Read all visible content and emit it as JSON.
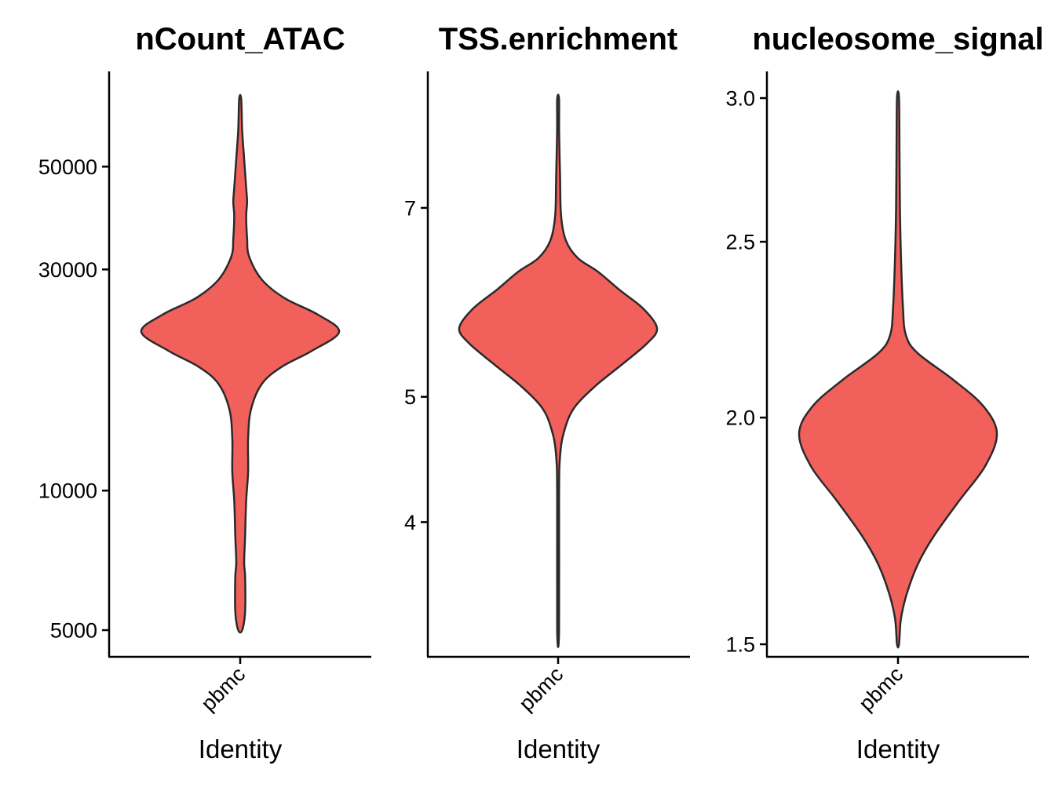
{
  "chart_data": [
    {
      "type": "violin",
      "title": "nCount_ATAC",
      "xlabel": "Identity",
      "ylabel": "",
      "categories": [
        "pbmc"
      ],
      "fill_color": "#F2605B",
      "y_scale": "log",
      "yticks": [
        5000,
        10000,
        30000,
        50000
      ],
      "ytick_labels": [
        "5000",
        "10000",
        "30000",
        "50000"
      ],
      "ylim": [
        5000,
        70000
      ],
      "density_profile": [
        [
          5000,
          0.02
        ],
        [
          5500,
          0.05
        ],
        [
          6500,
          0.05
        ],
        [
          7000,
          0.04
        ],
        [
          8000,
          0.05
        ],
        [
          9500,
          0.06
        ],
        [
          11000,
          0.08
        ],
        [
          13000,
          0.08
        ],
        [
          15000,
          0.11
        ],
        [
          17000,
          0.22
        ],
        [
          18500,
          0.42
        ],
        [
          20000,
          0.72
        ],
        [
          22000,
          1.0
        ],
        [
          24000,
          0.78
        ],
        [
          26000,
          0.45
        ],
        [
          28500,
          0.22
        ],
        [
          32000,
          0.09
        ],
        [
          35000,
          0.07
        ],
        [
          39000,
          0.06
        ],
        [
          42000,
          0.07
        ],
        [
          45000,
          0.06
        ],
        [
          52000,
          0.04
        ],
        [
          60000,
          0.02
        ],
        [
          70000,
          0.01
        ]
      ]
    },
    {
      "type": "violin",
      "title": "TSS.enrichment",
      "xlabel": "Identity",
      "ylabel": "",
      "categories": [
        "pbmc"
      ],
      "fill_color": "#F2605B",
      "y_scale": "log",
      "yticks": [
        4,
        5,
        7
      ],
      "ytick_labels": [
        "4",
        "5",
        "7"
      ],
      "ylim": [
        3.3,
        8.5
      ],
      "density_profile": [
        [
          3.3,
          0.006
        ],
        [
          4.2,
          0.006
        ],
        [
          4.5,
          0.02
        ],
        [
          4.7,
          0.06
        ],
        [
          4.9,
          0.16
        ],
        [
          5.1,
          0.38
        ],
        [
          5.3,
          0.65
        ],
        [
          5.5,
          0.9
        ],
        [
          5.65,
          1.0
        ],
        [
          5.85,
          0.86
        ],
        [
          6.05,
          0.62
        ],
        [
          6.25,
          0.4
        ],
        [
          6.4,
          0.2
        ],
        [
          6.6,
          0.08
        ],
        [
          6.9,
          0.03
        ],
        [
          7.4,
          0.02
        ],
        [
          8.0,
          0.01
        ],
        [
          8.5,
          0.005
        ]
      ]
    },
    {
      "type": "violin",
      "title": "nucleosome_signal",
      "xlabel": "Identity",
      "ylabel": "",
      "categories": [
        "pbmc"
      ],
      "fill_color": "#F2605B",
      "y_scale": "log",
      "yticks": [
        1.5,
        2.0,
        2.5,
        3.0
      ],
      "ytick_labels": [
        "1.5",
        "2.0",
        "2.5",
        "3.0"
      ],
      "ylim": [
        1.5,
        3.0
      ],
      "density_profile": [
        [
          1.5,
          0.01
        ],
        [
          1.55,
          0.03
        ],
        [
          1.6,
          0.09
        ],
        [
          1.66,
          0.2
        ],
        [
          1.72,
          0.36
        ],
        [
          1.8,
          0.62
        ],
        [
          1.88,
          0.88
        ],
        [
          1.96,
          1.0
        ],
        [
          2.03,
          0.86
        ],
        [
          2.1,
          0.55
        ],
        [
          2.17,
          0.2
        ],
        [
          2.22,
          0.08
        ],
        [
          2.3,
          0.05
        ],
        [
          2.45,
          0.03
        ],
        [
          2.6,
          0.02
        ],
        [
          2.8,
          0.015
        ],
        [
          3.0,
          0.01
        ]
      ]
    }
  ]
}
